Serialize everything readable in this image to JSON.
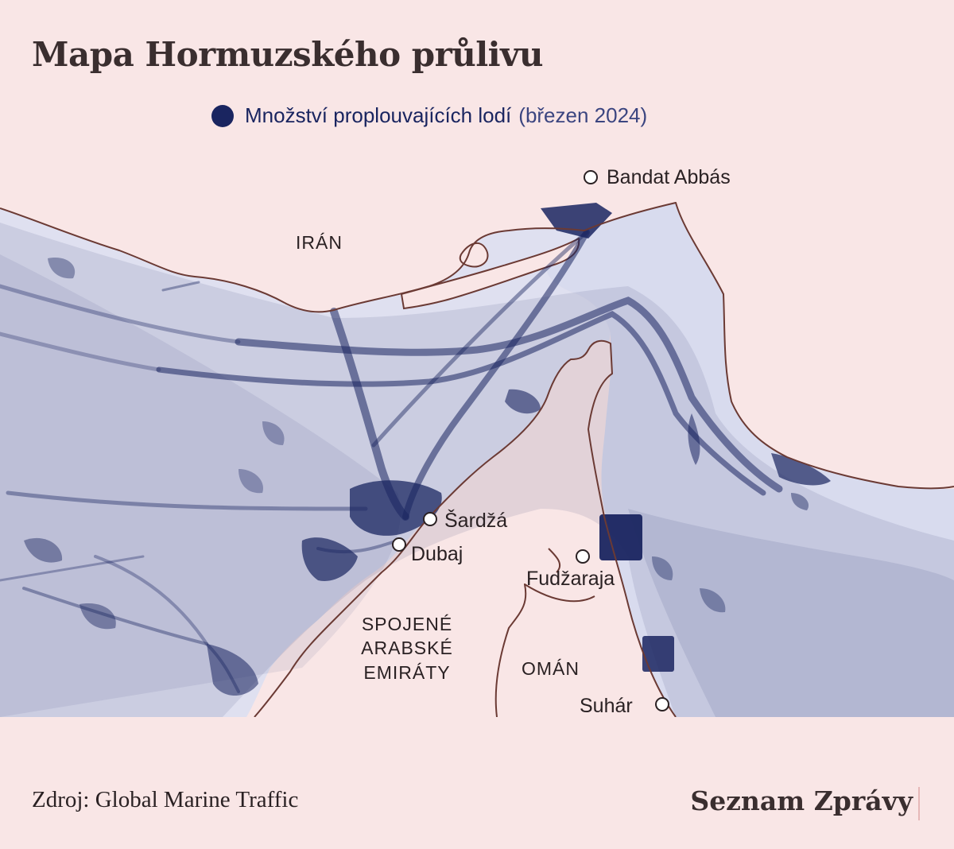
{
  "title": "Mapa Hormuzského průlivu",
  "legend": {
    "label": "Množství proplouvajících lodí",
    "period": "(březen 2024)",
    "color": "#1a2560"
  },
  "map": {
    "land_color": "#f9e6e6",
    "coast_color": "#6b3a34",
    "traffic_color": "#1a2560",
    "countries": {
      "iran": "IRÁN",
      "uae_line1": "SPOJENÉ",
      "uae_line2": "ARABSKÉ",
      "uae_line3": "EMIRÁTY",
      "oman": "OMÁN"
    },
    "cities": {
      "bandar_abbas": "Bandat Abbás",
      "sharjah": "Šardžá",
      "dubai": "Dubaj",
      "fujairah": "Fudžaraja",
      "sohar": "Suhár"
    }
  },
  "footer": {
    "source": "Zdroj: Global Marine Traffic",
    "brand": "Seznam Zprávy"
  }
}
